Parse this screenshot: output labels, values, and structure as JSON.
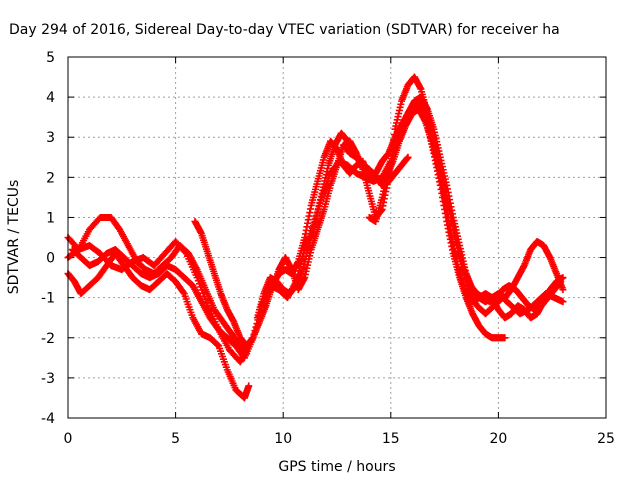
{
  "chart_data": {
    "type": "scatter",
    "title": "Day 294 of 2016, Sidereal Day-to-day VTEC variation (SDTVAR) for receiver ha",
    "xlabel": "GPS time / hours",
    "ylabel": "SDTVAR / TECUs",
    "xlim": [
      0,
      25
    ],
    "ylim": [
      -4,
      5
    ],
    "xticks": [
      0,
      5,
      10,
      15,
      20,
      25
    ],
    "yticks": [
      -4,
      -3,
      -2,
      -1,
      0,
      1,
      2,
      3,
      4,
      5
    ],
    "grid": true,
    "marker": "+",
    "color": "#ff0000",
    "series": [
      {
        "x": [
          0.0,
          0.5,
          1.0,
          1.5,
          2.0,
          2.5,
          3.0,
          3.5,
          4.0,
          4.5,
          5.0,
          5.5,
          6.0,
          6.5,
          7.0,
          7.5,
          8.0,
          8.2
        ],
        "y": [
          0.5,
          0.2,
          0.3,
          0.1,
          -0.2,
          -0.3,
          -0.1,
          0.0,
          -0.2,
          0.1,
          0.4,
          0.1,
          -0.5,
          -1.2,
          -1.8,
          -2.3,
          -2.6,
          -2.4
        ]
      },
      {
        "x": [
          0.0,
          0.3,
          0.6,
          1.0,
          1.4,
          1.8,
          2.2,
          2.6,
          3.0,
          3.4,
          3.8,
          4.2,
          4.6,
          5.0,
          5.4,
          5.8,
          6.2,
          6.6,
          7.0,
          7.4,
          7.8,
          8.2,
          8.4
        ],
        "y": [
          -0.4,
          -0.6,
          -0.9,
          -0.7,
          -0.5,
          -0.2,
          0.1,
          -0.2,
          -0.5,
          -0.7,
          -0.8,
          -0.6,
          -0.4,
          -0.6,
          -0.9,
          -1.5,
          -1.9,
          -2.0,
          -2.2,
          -2.8,
          -3.3,
          -3.5,
          -3.2
        ]
      },
      {
        "x": [
          0.0,
          0.5,
          1.0,
          1.5,
          2.0,
          2.4,
          2.8,
          3.2,
          3.6,
          4.0,
          4.4,
          4.8,
          5.2,
          5.6,
          6.0,
          6.4,
          6.8,
          7.2,
          7.6,
          8.0,
          8.3
        ],
        "y": [
          0.0,
          0.2,
          0.7,
          1.0,
          1.0,
          0.7,
          0.3,
          -0.1,
          -0.3,
          -0.4,
          -0.2,
          0.0,
          0.3,
          0.1,
          -0.3,
          -0.8,
          -1.3,
          -1.6,
          -1.9,
          -2.2,
          -2.4
        ]
      },
      {
        "x": [
          0.2,
          0.6,
          1.0,
          1.4,
          1.8,
          2.2,
          2.6,
          3.0,
          3.4,
          3.8,
          4.2,
          4.6,
          5.0,
          5.4,
          5.8,
          6.2,
          6.6,
          7.0,
          7.4,
          7.8,
          8.2,
          8.6,
          9.0,
          9.4,
          9.8,
          10.2,
          10.6,
          11.0,
          11.4,
          11.8,
          12.2,
          12.6,
          13.0,
          13.4,
          13.8,
          14.2,
          14.6,
          15.0,
          15.4,
          15.8,
          16.2,
          16.6,
          17.0,
          17.4,
          17.8,
          18.2,
          18.6,
          19.0,
          19.4,
          19.8,
          20.2,
          20.6,
          21.0,
          21.4,
          21.8,
          22.2,
          22.6,
          23.0
        ],
        "y": [
          0.2,
          0.0,
          -0.2,
          -0.1,
          0.1,
          0.2,
          0.0,
          -0.2,
          -0.4,
          -0.5,
          -0.4,
          -0.2,
          -0.3,
          -0.5,
          -0.7,
          -1.1,
          -1.5,
          -1.8,
          -2.0,
          -2.2,
          -2.5,
          -2.0,
          -1.2,
          -0.7,
          -0.8,
          -1.0,
          -0.6,
          0.2,
          0.8,
          1.5,
          2.1,
          2.4,
          2.3,
          2.1,
          2.0,
          1.9,
          2.0,
          2.4,
          3.0,
          3.5,
          3.9,
          3.6,
          3.0,
          2.0,
          1.0,
          0.0,
          -0.8,
          -1.2,
          -1.4,
          -1.2,
          -1.0,
          -1.2,
          -1.4,
          -1.3,
          -1.1,
          -0.9,
          -1.0,
          -1.1
        ]
      },
      {
        "x": [
          5.9,
          6.2,
          6.5,
          6.8,
          7.1,
          7.4,
          7.7,
          8.0,
          8.3,
          8.6,
          8.9,
          9.2,
          9.5,
          9.8,
          10.1,
          10.4,
          10.7,
          11.0,
          11.3,
          11.6,
          11.9,
          12.2,
          12.5,
          12.8,
          13.1,
          13.4,
          13.7,
          14.0,
          14.3,
          14.6,
          14.9,
          15.2,
          15.5,
          15.8,
          16.1,
          16.4,
          16.7,
          17.0,
          17.3,
          17.6,
          17.9,
          18.2,
          18.5,
          18.8,
          19.1,
          19.4,
          19.7,
          20.0,
          20.3
        ],
        "y": [
          0.9,
          0.6,
          0.1,
          -0.4,
          -0.9,
          -1.3,
          -1.6,
          -2.0,
          -2.2,
          -2.0,
          -1.6,
          -1.2,
          -0.7,
          -0.4,
          -0.3,
          -0.4,
          -0.1,
          0.5,
          1.3,
          1.9,
          2.5,
          2.9,
          2.7,
          2.3,
          2.1,
          2.3,
          2.4,
          2.0,
          2.1,
          2.4,
          2.6,
          3.0,
          3.3,
          3.6,
          3.8,
          3.7,
          3.3,
          2.6,
          1.8,
          0.9,
          0.1,
          -0.5,
          -1.0,
          -1.4,
          -1.7,
          -1.9,
          -2.0,
          -2.0,
          -2.0
        ]
      },
      {
        "x": [
          8.8,
          9.1,
          9.4,
          9.7,
          10.0,
          10.3,
          10.6,
          10.9,
          11.2,
          11.5,
          11.8,
          12.1,
          12.4,
          12.7,
          13.0,
          13.3,
          13.6,
          13.9,
          14.2,
          14.5,
          14.8,
          15.1,
          15.4,
          15.7,
          16.0,
          16.3,
          16.6,
          16.9,
          17.2,
          17.5,
          17.8,
          18.1,
          18.4,
          18.7,
          19.0,
          19.3,
          19.6,
          19.9,
          20.2,
          20.5,
          20.8,
          21.1,
          21.4,
          21.7,
          22.0,
          22.3,
          22.6,
          22.9
        ],
        "y": [
          -1.5,
          -0.9,
          -0.5,
          -0.6,
          -0.8,
          -0.9,
          -0.7,
          -0.3,
          0.3,
          0.9,
          1.6,
          2.3,
          2.8,
          3.1,
          2.9,
          2.6,
          2.4,
          2.2,
          2.1,
          1.9,
          2.0,
          2.4,
          2.9,
          3.3,
          3.6,
          3.7,
          3.4,
          2.9,
          2.3,
          1.7,
          1.0,
          0.3,
          -0.3,
          -0.7,
          -0.9,
          -1.0,
          -1.1,
          -1.0,
          -0.8,
          -0.7,
          -0.8,
          -1.0,
          -1.2,
          -1.3,
          -1.2,
          -1.0,
          -0.8,
          -0.6
        ]
      },
      {
        "x": [
          9.5,
          9.8,
          10.1,
          10.4,
          10.7,
          11.0,
          11.3,
          11.6,
          11.9,
          12.2,
          12.5,
          12.8,
          13.1,
          13.4,
          13.7,
          14.0,
          14.3,
          14.6,
          14.9,
          15.2,
          15.5,
          15.8,
          16.1,
          16.4,
          16.7,
          17.0,
          17.3,
          17.6,
          17.9,
          18.2,
          18.5,
          18.8,
          19.1,
          19.4,
          19.7,
          20.0,
          20.3,
          20.6,
          20.9,
          21.2,
          21.5,
          21.8,
          22.1,
          22.4,
          22.7,
          23.0
        ],
        "y": [
          -0.8,
          -0.3,
          0.0,
          -0.3,
          -0.8,
          -0.5,
          0.2,
          0.7,
          1.2,
          1.8,
          2.3,
          2.8,
          2.9,
          2.6,
          2.2,
          1.6,
          1.0,
          1.2,
          2.0,
          3.2,
          3.9,
          4.3,
          4.5,
          4.2,
          3.6,
          2.8,
          2.0,
          1.2,
          0.3,
          -0.4,
          -0.9,
          -1.1,
          -1.0,
          -0.9,
          -1.0,
          -1.3,
          -1.5,
          -1.4,
          -1.2,
          -1.3,
          -1.5,
          -1.4,
          -1.1,
          -0.8,
          -0.6,
          -0.5
        ]
      },
      {
        "x": [
          14.0,
          14.3,
          14.6,
          14.9,
          15.2,
          15.5,
          15.8,
          16.1,
          16.4,
          16.7,
          17.0,
          17.3,
          17.6,
          17.9,
          18.2,
          18.5,
          18.8,
          19.1,
          19.4,
          19.7,
          20.0,
          20.3,
          20.6,
          20.9,
          21.2,
          21.5,
          21.8,
          22.1,
          22.4,
          22.7,
          23.0
        ],
        "y": [
          1.0,
          0.9,
          1.5,
          2.2,
          2.8,
          3.2,
          3.6,
          3.9,
          4.0,
          3.7,
          3.2,
          2.5,
          1.8,
          1.0,
          0.3,
          -0.4,
          -0.8,
          -1.0,
          -1.1,
          -1.0,
          -0.9,
          -1.0,
          -0.8,
          -0.5,
          -0.2,
          0.2,
          0.4,
          0.3,
          0.0,
          -0.4,
          -0.8
        ]
      },
      {
        "x": [
          12.8,
          13.1,
          13.4,
          13.7,
          14.0,
          14.3,
          14.6,
          14.9,
          15.2,
          15.5,
          15.8
        ],
        "y": [
          2.8,
          2.6,
          2.5,
          2.3,
          2.2,
          2.0,
          1.8,
          1.9,
          2.1,
          2.3,
          2.5
        ]
      }
    ]
  }
}
